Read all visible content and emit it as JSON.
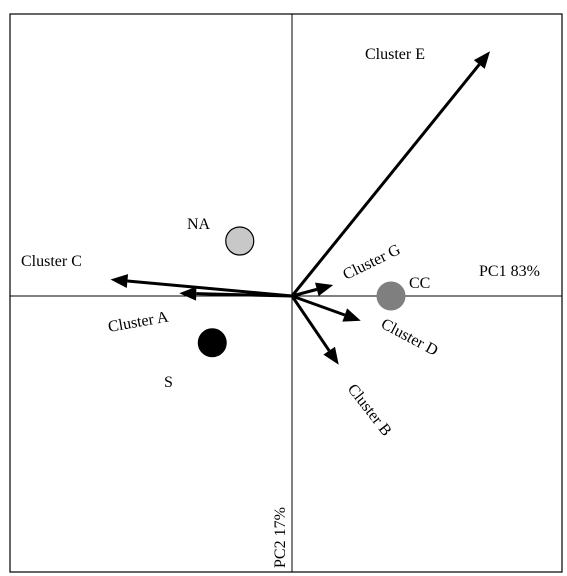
{
  "chart_data": {
    "type": "biplot",
    "xlabel": "PC1 83%",
    "ylabel": "PC2 17%",
    "grid": false,
    "vectors": [
      {
        "label": "Cluster E",
        "x": 0.72,
        "y": 0.89
      },
      {
        "label": "Cluster C",
        "x": -0.66,
        "y": 0.06
      },
      {
        "label": "Cluster A",
        "x": -0.41,
        "y": 0.01
      },
      {
        "label": "Cluster G",
        "x": 0.15,
        "y": 0.04
      },
      {
        "label": "Cluster D",
        "x": 0.25,
        "y": -0.09
      },
      {
        "label": "Cluster B",
        "x": 0.17,
        "y": -0.25
      }
    ],
    "points": [
      {
        "label": "NA",
        "x": -0.19,
        "y": 0.2,
        "color": "#c8c8c8"
      },
      {
        "label": "S",
        "x": -0.29,
        "y": -0.17,
        "color": "#000000"
      },
      {
        "label": "CC",
        "x": 0.36,
        "y": -0.0,
        "color": "#7f7f7f"
      }
    ],
    "colors": {
      "vector": "#000000",
      "axis": "#000000",
      "text": "#000000"
    }
  }
}
